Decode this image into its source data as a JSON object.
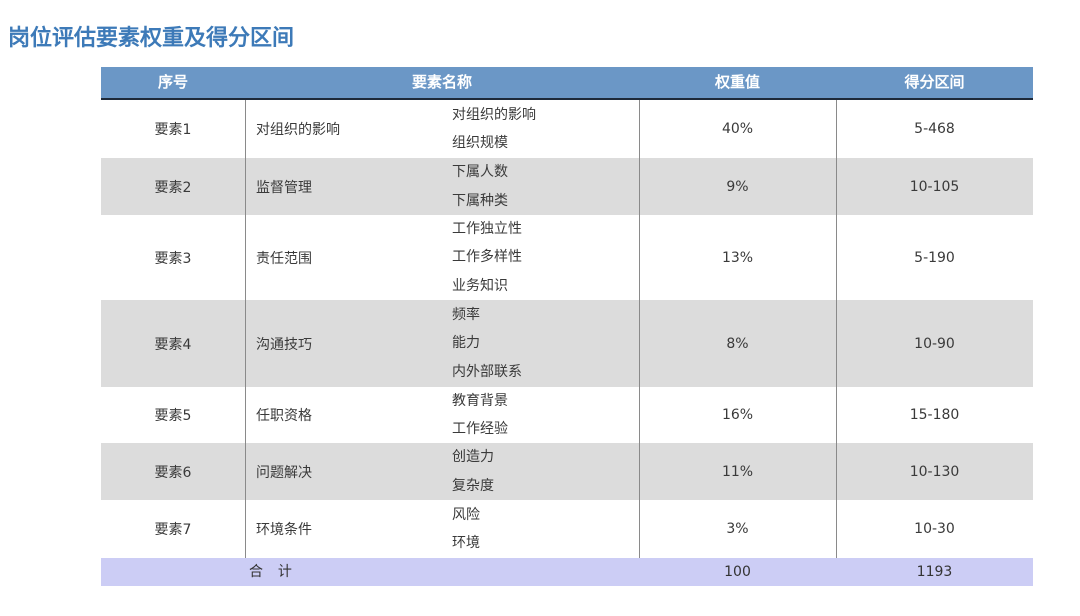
{
  "title": "岗位评估要素权重及得分区间",
  "table": {
    "headers": {
      "index": "序号",
      "name": "要素名称",
      "weight": "权重值",
      "range": "得分区间"
    },
    "rows": [
      {
        "index": "要素1",
        "name": "对组织的影响",
        "subs": [
          "对组织的影响",
          "组织规模"
        ],
        "weight": "40%",
        "range": "5-468"
      },
      {
        "index": "要素2",
        "name": "监督管理",
        "subs": [
          "下属人数",
          "下属种类"
        ],
        "weight": "9%",
        "range": "10-105"
      },
      {
        "index": "要素3",
        "name": "责任范围",
        "subs": [
          "工作独立性",
          "工作多样性",
          "业务知识"
        ],
        "weight": "13%",
        "range": "5-190"
      },
      {
        "index": "要素4",
        "name": "沟通技巧",
        "subs": [
          "频率",
          "能力",
          "内外部联系"
        ],
        "weight": "8%",
        "range": "10-90"
      },
      {
        "index": "要素5",
        "name": "任职资格",
        "subs": [
          "教育背景",
          "工作经验"
        ],
        "weight": "16%",
        "range": "15-180"
      },
      {
        "index": "要素6",
        "name": "问题解决",
        "subs": [
          "创造力",
          "复杂度"
        ],
        "weight": "11%",
        "range": "10-130"
      },
      {
        "index": "要素7",
        "name": "环境条件",
        "subs": [
          "风险",
          "环境"
        ],
        "weight": "3%",
        "range": "10-30"
      }
    ],
    "total": {
      "label": "合  计",
      "weight": "100",
      "range": "1193"
    }
  },
  "colors": {
    "title": "#3d7ab8",
    "header_bg": "#6b97c6",
    "row_gray": "#dcdcdc",
    "total_bg": "#cccdf5"
  }
}
